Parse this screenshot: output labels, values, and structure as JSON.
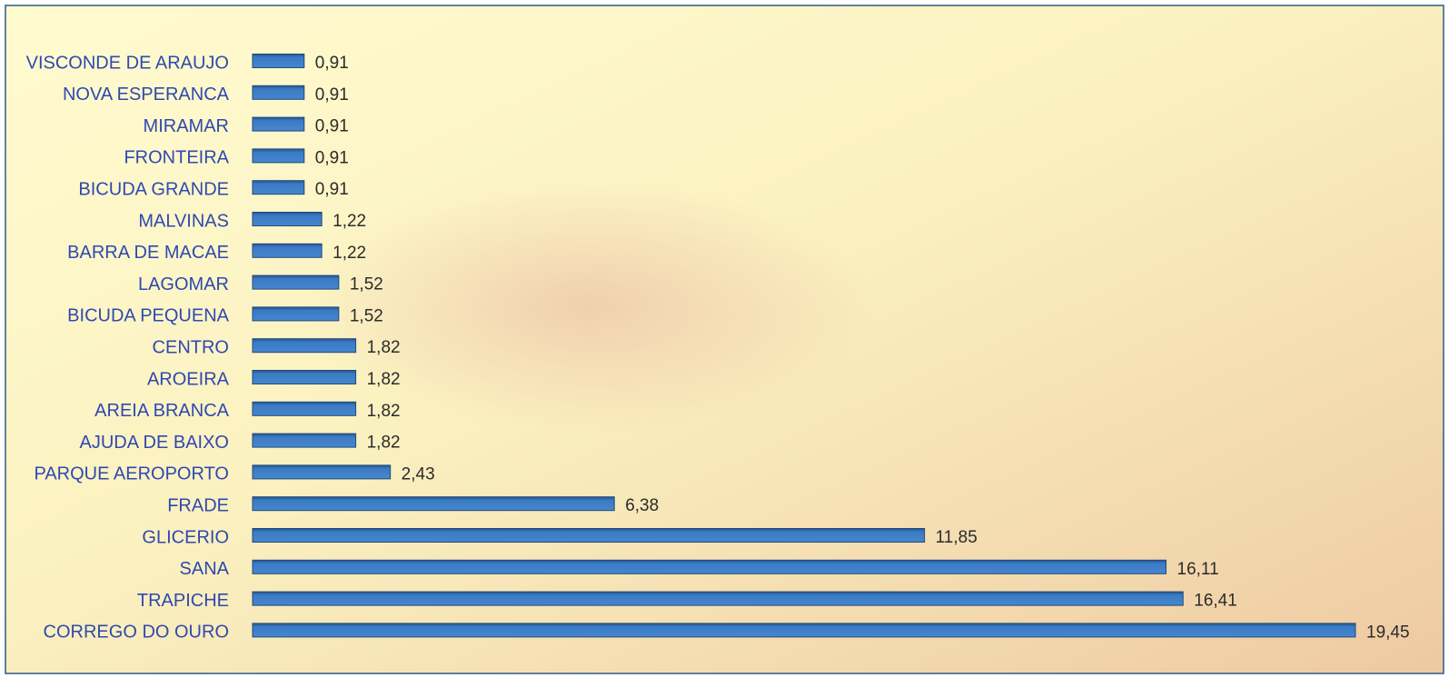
{
  "chart_data": {
    "type": "hbar",
    "categories": [
      "VISCONDE DE ARAUJO",
      "NOVA ESPERANCA",
      "MIRAMAR",
      "FRONTEIRA",
      "BICUDA GRANDE",
      "MALVINAS",
      "BARRA DE MACAE",
      "LAGOMAR",
      "BICUDA PEQUENA",
      "CENTRO",
      "AROEIRA",
      "AREIA BRANCA",
      "AJUDA DE BAIXO",
      "PARQUE AEROPORTO",
      "FRADE",
      "GLICERIO",
      "SANA",
      "TRAPICHE",
      "CORREGO DO OURO"
    ],
    "values": [
      0.91,
      0.91,
      0.91,
      0.91,
      0.91,
      1.22,
      1.22,
      1.52,
      1.52,
      1.82,
      1.82,
      1.82,
      1.82,
      2.43,
      6.38,
      11.85,
      16.11,
      16.41,
      19.45
    ],
    "value_labels": [
      "0,91",
      "0,91",
      "0,91",
      "0,91",
      "0,91",
      "1,22",
      "1,22",
      "1,52",
      "1,52",
      "1,82",
      "1,82",
      "1,82",
      "1,82",
      "2,43",
      "6,38",
      "11,85",
      "16,11",
      "16,41",
      "19,45"
    ],
    "color": "#3b7bc4"
  }
}
